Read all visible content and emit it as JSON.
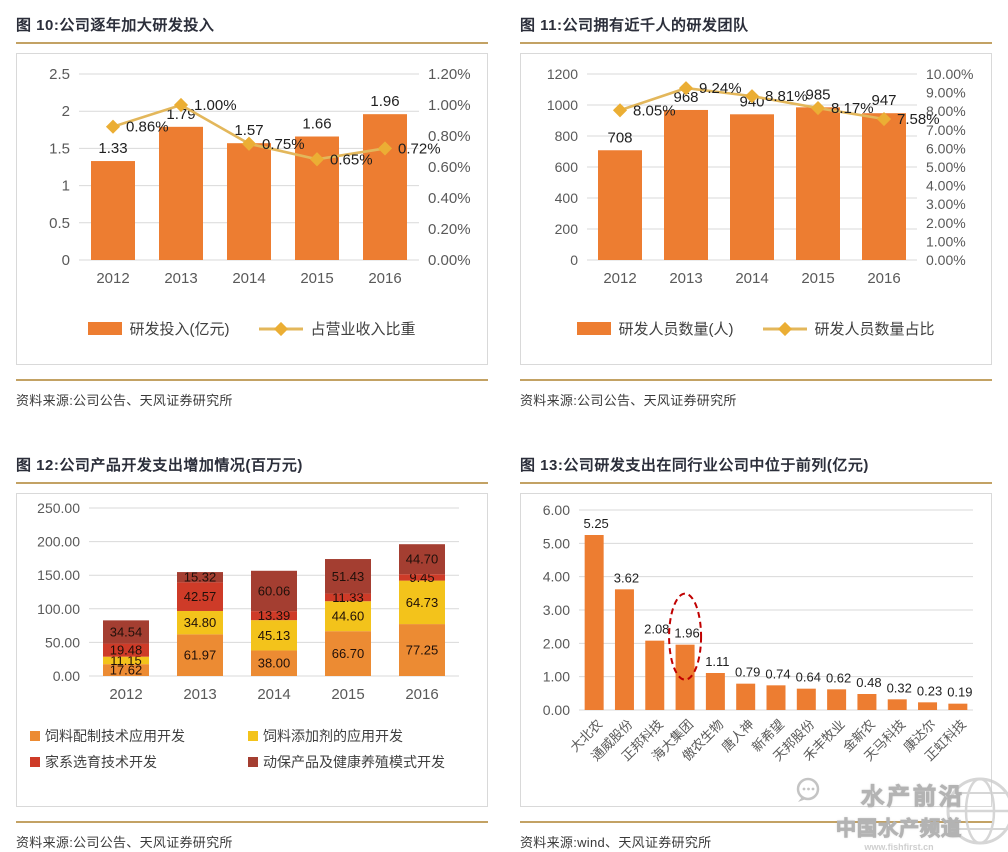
{
  "colors": {
    "bar": "#ED7D31",
    "line": "#E3B75B",
    "marker": "#EBAE34",
    "stack": [
      "#EC8B33",
      "#F3C31B",
      "#CE3B28",
      "#A43E31"
    ],
    "rule": "#C3A264",
    "grid": "#D9D9D9",
    "tick": "#595959",
    "label": "#1F1F1F",
    "ellipse": "#C00000"
  },
  "watermark": {
    "line1": "水产前沿",
    "line2": "中国水产频道",
    "line3": "www.fishfirst.cn"
  },
  "chart_data": [
    {
      "type": "bar",
      "subtype": "combo-bar-line",
      "title": "图 10:公司逐年加大研发投入",
      "source": "资料来源:公司公告、天风证券研究所",
      "categories": [
        "2012",
        "2013",
        "2014",
        "2015",
        "2016"
      ],
      "bar_series": {
        "name": "研发投入(亿元)",
        "values": [
          1.33,
          1.79,
          1.57,
          1.66,
          1.96
        ],
        "labels": [
          "1.33",
          "1.79",
          "1.57",
          "1.66",
          "1.96"
        ]
      },
      "line_series": {
        "name": "占营业收入比重",
        "values": [
          0.86,
          1.0,
          0.75,
          0.65,
          0.72
        ],
        "labels": [
          "0.86%",
          "1.00%",
          "0.75%",
          "0.65%",
          "0.72%"
        ]
      },
      "left_axis": {
        "min": 0,
        "max": 2.5,
        "ticks": [
          "2.5",
          "2",
          "1.5",
          "1",
          "0.5",
          "0"
        ]
      },
      "right_axis": {
        "min": 0,
        "max": 1.2,
        "ticks": [
          "1.20%",
          "1.00%",
          "0.80%",
          "0.60%",
          "0.40%",
          "0.20%",
          "0.00%"
        ]
      },
      "grid": true,
      "legend_position": "bottom"
    },
    {
      "type": "bar",
      "subtype": "combo-bar-line",
      "title": "图 11:公司拥有近千人的研发团队",
      "source": "资料来源:公司公告、天风证券研究所",
      "categories": [
        "2012",
        "2013",
        "2014",
        "2015",
        "2016"
      ],
      "bar_series": {
        "name": "研发人员数量(人)",
        "values": [
          708,
          968,
          940,
          985,
          947
        ],
        "labels": [
          "708",
          "968",
          "940",
          "985",
          "947"
        ]
      },
      "line_series": {
        "name": "研发人员数量占比",
        "values": [
          8.05,
          9.24,
          8.81,
          8.17,
          7.58
        ],
        "labels": [
          "8.05%",
          "9.24%",
          "8.81%",
          "8.17%",
          "7.58%"
        ]
      },
      "left_axis": {
        "min": 0,
        "max": 1200,
        "ticks": [
          "1200",
          "1000",
          "800",
          "600",
          "400",
          "200",
          "0"
        ]
      },
      "right_axis": {
        "min": 0,
        "max": 10,
        "ticks": [
          "10.00%",
          "9.00%",
          "8.00%",
          "7.00%",
          "6.00%",
          "5.00%",
          "4.00%",
          "3.00%",
          "2.00%",
          "1.00%",
          "0.00%"
        ]
      },
      "grid": true,
      "legend_position": "bottom"
    },
    {
      "type": "bar",
      "subtype": "stacked-bar",
      "title": "图 12:公司产品开发支出增加情况(百万元)",
      "source": "资料来源:公司公告、天风证券研究所",
      "categories": [
        "2012",
        "2013",
        "2014",
        "2015",
        "2016"
      ],
      "series": [
        {
          "name": "饲料配制技术应用开发",
          "values": [
            17.62,
            61.97,
            38.0,
            66.7,
            77.25
          ],
          "labels": [
            "17.62",
            "61.97",
            "38.00",
            "66.70",
            "77.25"
          ]
        },
        {
          "name": "饲料添加剂的应用开发",
          "values": [
            11.15,
            34.8,
            45.13,
            44.6,
            64.73
          ],
          "labels": [
            "11.15",
            "34.80",
            "45.13",
            "44.60",
            "64.73"
          ]
        },
        {
          "name": "家系选育技术开发",
          "values": [
            19.48,
            42.57,
            13.39,
            11.33,
            9.45
          ],
          "labels": [
            "19.48",
            "42.57",
            "13.39",
            "11.33",
            "9.45"
          ]
        },
        {
          "name": "动保产品及健康养殖模式开发",
          "values": [
            34.54,
            15.32,
            60.06,
            51.43,
            44.7
          ],
          "labels": [
            "34.54",
            "15.32",
            "60.06",
            "51.43",
            "44.70"
          ]
        }
      ],
      "left_axis": {
        "min": 0,
        "max": 250,
        "ticks": [
          "250.00",
          "200.00",
          "150.00",
          "100.00",
          "50.00",
          "0.00"
        ]
      },
      "grid": true,
      "legend_position": "bottom"
    },
    {
      "type": "bar",
      "subtype": "simple-bar",
      "title": "图 13:公司研发支出在同行业公司中位于前列(亿元)",
      "source": "资料来源:wind、天风证券研究所",
      "categories": [
        "大北农",
        "通威股份",
        "正邦科技",
        "海大集团",
        "傲农生物",
        "唐人神",
        "新希望",
        "天邦股份",
        "禾丰牧业",
        "金新农",
        "天马科技",
        "康达尔",
        "正虹科技"
      ],
      "values": [
        5.25,
        3.62,
        2.08,
        1.96,
        1.11,
        0.79,
        0.74,
        0.64,
        0.62,
        0.48,
        0.32,
        0.23,
        0.19
      ],
      "labels": [
        "5.25",
        "3.62",
        "2.08",
        "1.96",
        "1.11",
        "0.79",
        "0.74",
        "0.64",
        "0.62",
        "0.48",
        "0.32",
        "0.23",
        "0.19"
      ],
      "left_axis": {
        "min": 0,
        "max": 6,
        "ticks": [
          "6.00",
          "5.00",
          "4.00",
          "3.00",
          "2.00",
          "1.00",
          "0.00"
        ]
      },
      "highlight_index": 3,
      "grid": true,
      "legend_position": "none"
    }
  ]
}
